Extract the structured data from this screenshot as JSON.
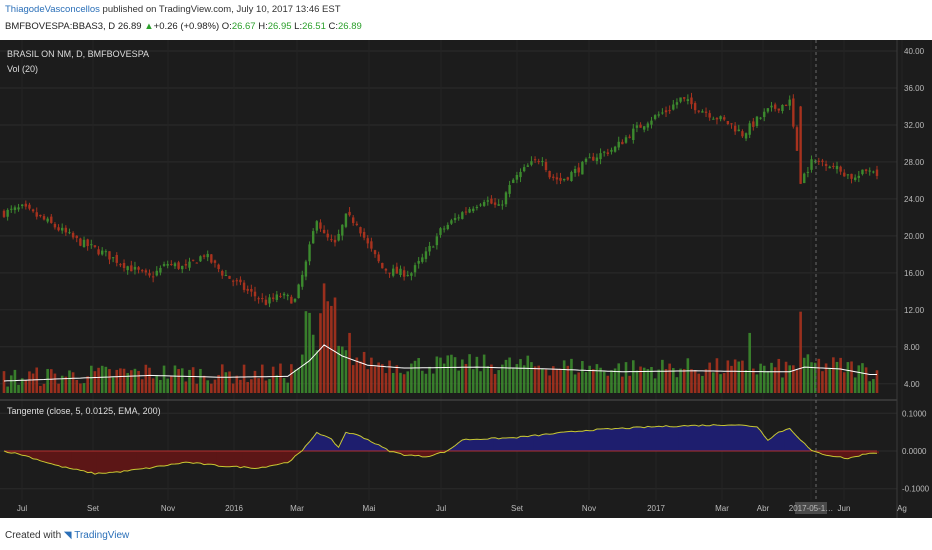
{
  "header": {
    "author": "ThiagodeVasconcellos",
    "published": "published on TradingView.com, July 10, 2017 13:46 EST",
    "symbol": "BMFBOVESPA:BBAS3, D",
    "last": "26.89",
    "arrow": "▲",
    "change": "+0.26 (+0.98%)",
    "o_label": "O:",
    "o_value": "26.67",
    "h_label": "H:",
    "h_value": "26.95",
    "l_label": "L:",
    "l_value": "26.51",
    "c_label": "C:",
    "c_value": "26.89"
  },
  "legend": {
    "instrument": "BRASIL     ON     NM, D, BMFBOVESPA",
    "volume": "Vol (20)",
    "indicator": "Tangente (close, 5, 0.0125, EMA, 200)"
  },
  "footer": {
    "created": "Created with",
    "brand": "TradingView"
  },
  "colors": {
    "background": "#1c1c1c",
    "up": "#3c8a2e",
    "down": "#a8321e",
    "volume_ma": "#ffffff",
    "osc_positive_fill": "#1e1e6e",
    "osc_negative_fill": "#5c1616",
    "osc_line": "#c8c832",
    "zero_line": "#b03030"
  },
  "chart_data": {
    "type": "candlestick",
    "x_ticks": [
      "Jul",
      "Set",
      "Nov",
      "2016",
      "Mar",
      "Mai",
      "Jul",
      "Set",
      "Nov",
      "2017",
      "Mar",
      "Abr",
      "2017-05-1…",
      "Jun",
      "Ag"
    ],
    "price_axis": {
      "ticks": [
        "40.00",
        "36.00",
        "32.00",
        "28.00",
        "24.00",
        "20.00",
        "16.00",
        "12.00",
        "8.00",
        "4.00"
      ],
      "range": [
        3,
        40
      ]
    },
    "indicator_axis": {
      "ticks": [
        "0.1000",
        "0.0000",
        "-0.1000"
      ],
      "range": [
        -0.13,
        0.13
      ]
    },
    "close_path": [
      [
        0,
        22.5
      ],
      [
        5,
        23.0
      ],
      [
        12,
        21.5
      ],
      [
        20,
        19.5
      ],
      [
        28,
        18.0
      ],
      [
        35,
        16.5
      ],
      [
        40,
        15.5
      ],
      [
        45,
        17.0
      ],
      [
        50,
        16.5
      ],
      [
        55,
        18.0
      ],
      [
        60,
        16.0
      ],
      [
        67,
        14.0
      ],
      [
        72,
        12.8
      ],
      [
        76,
        13.5
      ],
      [
        80,
        13.0
      ],
      [
        83,
        17.0
      ],
      [
        86,
        22.0
      ],
      [
        88,
        20.0
      ],
      [
        91,
        19.0
      ],
      [
        94,
        22.0
      ],
      [
        97,
        21.5
      ],
      [
        100,
        19.0
      ],
      [
        104,
        16.5
      ],
      [
        108,
        16.0
      ],
      [
        112,
        16.0
      ],
      [
        116,
        18.0
      ],
      [
        120,
        20.5
      ],
      [
        126,
        22.5
      ],
      [
        132,
        24.0
      ],
      [
        136,
        23.0
      ],
      [
        140,
        26.0
      ],
      [
        144,
        27.5
      ],
      [
        148,
        28.5
      ],
      [
        150,
        26.5
      ],
      [
        153,
        26.0
      ],
      [
        157,
        27.0
      ],
      [
        162,
        28.5
      ],
      [
        168,
        29.5
      ],
      [
        172,
        31.0
      ],
      [
        177,
        32.5
      ],
      [
        182,
        33.5
      ],
      [
        186,
        34.8
      ],
      [
        190,
        34.0
      ],
      [
        195,
        33.0
      ],
      [
        200,
        32.0
      ],
      [
        203,
        31.0
      ],
      [
        207,
        32.5
      ],
      [
        210,
        33.5
      ],
      [
        213,
        34.0
      ],
      [
        216,
        34.5
      ],
      [
        219,
        26.0
      ],
      [
        222,
        28.0
      ],
      [
        226,
        28.0
      ],
      [
        230,
        27.0
      ],
      [
        234,
        26.2
      ],
      [
        238,
        27.3
      ],
      [
        240,
        26.89
      ]
    ],
    "volume_ma_path": [
      [
        0,
        4.3
      ],
      [
        20,
        4.6
      ],
      [
        40,
        4.9
      ],
      [
        60,
        4.7
      ],
      [
        78,
        4.8
      ],
      [
        84,
        6.5
      ],
      [
        88,
        8.2
      ],
      [
        93,
        7.0
      ],
      [
        100,
        6.0
      ],
      [
        110,
        5.7
      ],
      [
        130,
        5.8
      ],
      [
        150,
        5.6
      ],
      [
        170,
        5.3
      ],
      [
        190,
        5.4
      ],
      [
        210,
        5.3
      ],
      [
        216,
        5.3
      ],
      [
        220,
        5.8
      ],
      [
        230,
        5.6
      ],
      [
        238,
        5.0
      ]
    ],
    "oscillator_path": [
      [
        0,
        0.0
      ],
      [
        5,
        -0.01
      ],
      [
        15,
        -0.04
      ],
      [
        25,
        -0.06
      ],
      [
        32,
        -0.055
      ],
      [
        40,
        -0.045
      ],
      [
        50,
        -0.03
      ],
      [
        60,
        -0.04
      ],
      [
        70,
        -0.045
      ],
      [
        78,
        -0.03
      ],
      [
        82,
        0.0
      ],
      [
        86,
        0.05
      ],
      [
        90,
        0.03
      ],
      [
        92,
        0.01
      ],
      [
        94,
        0.05
      ],
      [
        98,
        0.04
      ],
      [
        103,
        0.015
      ],
      [
        106,
        0.0
      ],
      [
        110,
        -0.01
      ],
      [
        116,
        -0.015
      ],
      [
        122,
        0.0
      ],
      [
        126,
        0.03
      ],
      [
        140,
        0.035
      ],
      [
        160,
        0.055
      ],
      [
        180,
        0.065
      ],
      [
        200,
        0.07
      ],
      [
        207,
        0.065
      ],
      [
        210,
        0.03
      ],
      [
        213,
        0.05
      ],
      [
        216,
        0.06
      ],
      [
        218,
        0.04
      ],
      [
        222,
        0.0
      ],
      [
        226,
        -0.01
      ],
      [
        232,
        -0.02
      ],
      [
        236,
        -0.01
      ],
      [
        238,
        -0.005
      ]
    ]
  }
}
